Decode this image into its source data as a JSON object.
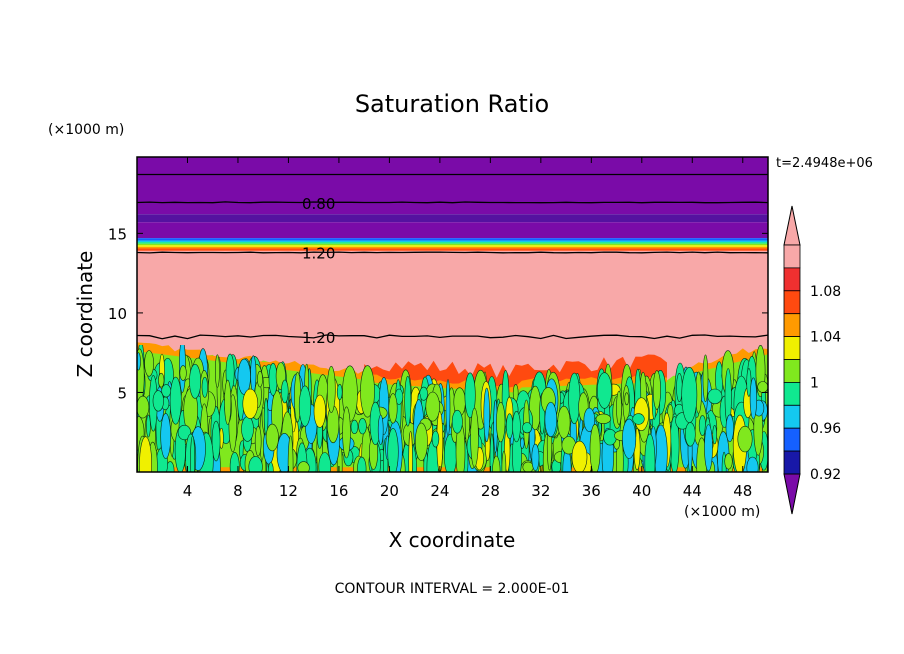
{
  "chart_data": {
    "type": "heatmap",
    "title": "Saturation Ratio",
    "xlabel": "X coordinate",
    "ylabel": "Z coordinate",
    "x_unit": "(×1000 m)",
    "y_unit": "(×1000 m)",
    "time_label": "t=2.4948e+06",
    "footer": "CONTOUR INTERVAL = 2.000E-01",
    "xlim": [
      0,
      50
    ],
    "ylim": [
      0,
      19.8
    ],
    "x_ticks": [
      4,
      8,
      12,
      16,
      20,
      24,
      28,
      32,
      36,
      40,
      44,
      48
    ],
    "y_ticks": [
      5,
      10,
      15
    ],
    "colorbar": {
      "levels": [
        0.92,
        0.96,
        1,
        1.04,
        1.08
      ],
      "labels": [
        "0.92",
        "0.96",
        "1",
        "1.04",
        "1.08"
      ],
      "colors": [
        "#7a0ba8",
        "#5512a0",
        "#1818a8",
        "#1560ff",
        "#14c8f0",
        "#10e890",
        "#80e81e",
        "#f0f000",
        "#ff9a00",
        "#ff4a10",
        "#f03030",
        "#f8a8a8"
      ]
    },
    "contour_labels": [
      {
        "text": "0.80",
        "x": 14.0,
        "z": 16.9
      },
      {
        "text": "1.20",
        "x": 14.0,
        "z": 13.8
      },
      {
        "text": "1.20",
        "x": 14.0,
        "z": 8.5
      }
    ],
    "layers": [
      {
        "zmin": 16.2,
        "zmax": 19.8,
        "value": "<0.92"
      },
      {
        "zmin": 15.7,
        "zmax": 16.2,
        "value": "0.92"
      },
      {
        "zmin": 14.7,
        "zmax": 15.7,
        "value": "<0.92"
      },
      {
        "zmin": 13.9,
        "zmax": 14.7,
        "value": "0.96-1.08"
      },
      {
        "zmin": 8.0,
        "zmax": 13.9,
        "value": ">1.1"
      },
      {
        "zmin": 0.0,
        "zmax": 8.0,
        "value": "0.98-1.08"
      }
    ]
  }
}
